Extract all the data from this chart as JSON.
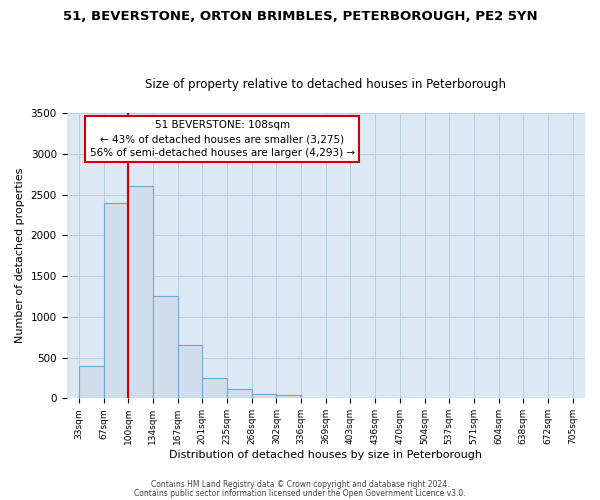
{
  "title1": "51, BEVERSTONE, ORTON BRIMBLES, PETERBOROUGH, PE2 5YN",
  "title2": "Size of property relative to detached houses in Peterborough",
  "xlabel": "Distribution of detached houses by size in Peterborough",
  "ylabel": "Number of detached properties",
  "bar_values": [
    400,
    2400,
    2600,
    1250,
    650,
    250,
    110,
    55,
    40,
    0,
    0,
    0,
    0,
    0,
    0,
    0,
    0,
    0,
    0,
    0
  ],
  "bar_labels": [
    "33sqm",
    "67sqm",
    "100sqm",
    "134sqm",
    "167sqm",
    "201sqm",
    "235sqm",
    "268sqm",
    "302sqm",
    "336sqm",
    "369sqm",
    "403sqm",
    "436sqm",
    "470sqm",
    "504sqm",
    "537sqm",
    "571sqm",
    "604sqm",
    "638sqm",
    "672sqm",
    "705sqm"
  ],
  "bar_color": "#cfdded",
  "bar_edge_color": "#6aaad4",
  "vline_color": "#cc0000",
  "annotation_title": "51 BEVERSTONE: 108sqm",
  "annotation_line1": "← 43% of detached houses are smaller (3,275)",
  "annotation_line2": "56% of semi-detached houses are larger (4,293) →",
  "annotation_box_color": "#ffffff",
  "annotation_box_edge": "#cc0000",
  "ylim_max": 3500,
  "yticks": [
    0,
    500,
    1000,
    1500,
    2000,
    2500,
    3000,
    3500
  ],
  "grid_color": "#b8cfe0",
  "bg_color": "#dce8f4",
  "footer1": "Contains HM Land Registry data © Crown copyright and database right 2024.",
  "footer2": "Contains public sector information licensed under the Open Government Licence v3.0."
}
